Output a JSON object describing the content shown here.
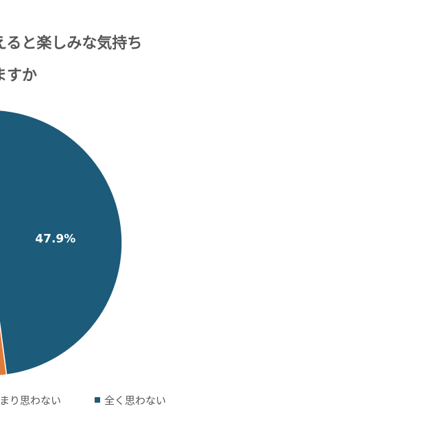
{
  "chart_data": {
    "type": "pie",
    "title": [
      "えると楽しみな気持ち",
      "ますか"
    ],
    "categories": [
      "あまり思わない",
      "全く思わない"
    ],
    "values": [
      4,
      47.9
    ],
    "value_labels": [
      null,
      "47.9%"
    ],
    "colors": [
      "#e07b39",
      "#1c5b7a"
    ]
  }
}
